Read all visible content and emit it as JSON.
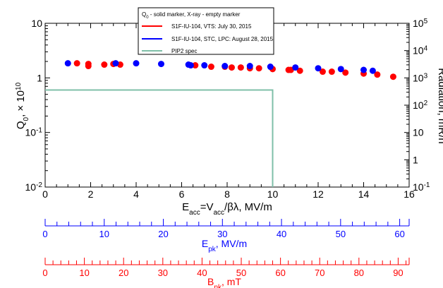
{
  "chart_data": {
    "type": "scatter",
    "xlabel": "E_acc=V_acc/βλ, MV/m",
    "ylabel_left": "Q_0, × 10^10",
    "ylabel_right": "Radiation, mR/h",
    "xlim": [
      0,
      16
    ],
    "ylim_left": [
      0.01,
      10
    ],
    "ylim_right": [
      0.1,
      100000
    ],
    "y_scale": "log",
    "x_ticks": [
      "0",
      "2",
      "4",
      "6",
      "8",
      "10",
      "12",
      "14",
      "16"
    ],
    "y_left_ticks": [
      {
        "base": "10",
        "exp": "-2",
        "value": 0.01
      },
      {
        "base": "10",
        "exp": "-1",
        "value": 0.1
      },
      {
        "base": "1",
        "exp": "",
        "value": 1
      },
      {
        "base": "10",
        "exp": "",
        "value": 10
      }
    ],
    "y_right_ticks": [
      {
        "base": "10",
        "exp": "-1",
        "value": 0.1
      },
      {
        "base": "1",
        "exp": "",
        "value": 1
      },
      {
        "base": "10",
        "exp": "",
        "value": 10
      },
      {
        "base": "10",
        "exp": "2",
        "value": 100
      },
      {
        "base": "10",
        "exp": "3",
        "value": 1000
      },
      {
        "base": "10",
        "exp": "4",
        "value": 10000
      },
      {
        "base": "10",
        "exp": "5",
        "value": 100000
      }
    ],
    "legend": {
      "header": "Q_0 - solid marker, X-ray - empty marker",
      "entries": [
        {
          "label": "S1F-IU-104, VTS: July 30, 2015",
          "color": "#ff0000"
        },
        {
          "label": "S1F-IU-104, STC, LPC: August 28, 2015",
          "color": "#0000ff"
        },
        {
          "label": "PIP2 spec",
          "color": "#7fbfa8"
        }
      ],
      "placement": "top-center"
    },
    "series": [
      {
        "color": "#ff0000",
        "marker": "solid-circle",
        "x": [
          1.4,
          1.9,
          1.9,
          2.6,
          3.0,
          3.3,
          6.6,
          7.3,
          7.9,
          8.2,
          8.6,
          9.0,
          9.4,
          10.0,
          10.7,
          10.8,
          11.2,
          12.2,
          12.6,
          13.2,
          14.0,
          14.6,
          15.3
        ],
        "y": [
          1.85,
          1.8,
          1.65,
          1.75,
          1.8,
          1.75,
          1.7,
          1.6,
          1.6,
          1.55,
          1.55,
          1.5,
          1.5,
          1.45,
          1.4,
          1.4,
          1.35,
          1.3,
          1.3,
          1.25,
          1.2,
          1.15,
          1.05
        ]
      },
      {
        "color": "#0000ff",
        "marker": "solid-circle",
        "x": [
          1.0,
          3.1,
          4.0,
          5.1,
          6.3,
          6.4,
          7.0,
          7.9,
          9.0,
          9.9,
          11.0,
          12.0,
          13.0,
          14.0,
          14.4
        ],
        "y": [
          1.85,
          1.85,
          1.85,
          1.8,
          1.75,
          1.7,
          1.7,
          1.65,
          1.65,
          1.6,
          1.55,
          1.5,
          1.45,
          1.4,
          1.35
        ]
      },
      {
        "color": "#7fbfa8",
        "marker": "line",
        "x": [
          0,
          10,
          10
        ],
        "y": [
          0.6,
          0.6,
          0.01
        ]
      }
    ],
    "secondary_axes": [
      {
        "label": "E_pk, MV/m",
        "color": "#0000ff",
        "range": [
          0,
          61.6
        ],
        "ticks": [
          "0",
          "10",
          "20",
          "30",
          "40",
          "50",
          "60"
        ],
        "tick_values": [
          0,
          10,
          20,
          30,
          40,
          50,
          60
        ],
        "minor_step": 2
      },
      {
        "label": "B_pk, mT",
        "color": "#ff0000",
        "range": [
          0,
          92.8
        ],
        "ticks": [
          "0",
          "10",
          "20",
          "30",
          "40",
          "50",
          "60",
          "70",
          "80",
          "90"
        ],
        "tick_values": [
          0,
          10,
          20,
          30,
          40,
          50,
          60,
          70,
          80,
          90
        ],
        "minor_step": 2
      }
    ],
    "grid": false
  },
  "labels": {
    "xlabel_main": "E",
    "xlabel_sub": "acc",
    "xlabel_rest1": "=V",
    "xlabel_sub2": "acc",
    "xlabel_rest2": "/βλ, MV/m",
    "ylabel_left_main": "Q",
    "ylabel_left_sub": "0",
    "ylabel_left_rest": ", × 10",
    "ylabel_left_sup": "10",
    "ylabel_right": "Radiation, mR/h",
    "legend_q": "Q",
    "legend_q_sub": "0",
    "legend_header_rest": " - solid marker, X-ray - empty marker",
    "epk_main": "E",
    "epk_sub": "pk",
    "epk_rest": ", MV/m",
    "bpk_main": "B",
    "bpk_sub": "pk",
    "bpk_rest": ", mT"
  }
}
